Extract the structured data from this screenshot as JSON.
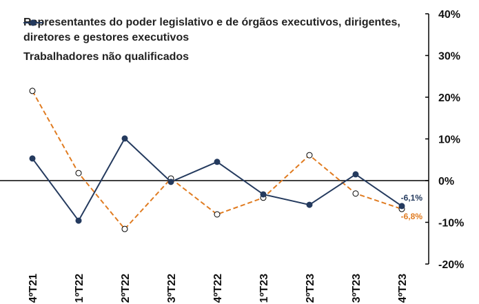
{
  "chart_data": {
    "type": "line",
    "categories": [
      "4ºT21",
      "1ºT22",
      "2ºT22",
      "3ºT22",
      "4ºT22",
      "1ºT23",
      "2ºT23",
      "3ºT23",
      "4ºT23"
    ],
    "series": [
      {
        "name": "Representantes do poder legislativo e de órgãos executivos, dirigentes, diretores e gestores executivos",
        "color": "#e07b20",
        "dashed": true,
        "marker": "open",
        "values": [
          21.5,
          1.8,
          -11.6,
          0.5,
          -8.1,
          -4.1,
          6.1,
          -3.1,
          -6.8
        ],
        "value_labels": [
          null,
          null,
          null,
          null,
          null,
          null,
          null,
          null,
          "-6,8%"
        ]
      },
      {
        "name": "Trabalhadores não qualificados",
        "color": "#243a5e",
        "dashed": false,
        "marker": "filled",
        "values": [
          5.3,
          -9.6,
          10.1,
          -0.3,
          4.5,
          -3.3,
          -5.8,
          1.5,
          -6.1
        ],
        "value_labels": [
          null,
          null,
          null,
          null,
          null,
          null,
          null,
          null,
          "-6,1%"
        ]
      }
    ],
    "ylim": [
      -20,
      40
    ],
    "yticks": [
      {
        "value": -20,
        "label": "-20%"
      },
      {
        "value": -10,
        "label": "-10%"
      },
      {
        "value": 0,
        "label": "0%"
      },
      {
        "value": 10,
        "label": "10%"
      },
      {
        "value": 20,
        "label": "20%"
      },
      {
        "value": 30,
        "label": "30%"
      },
      {
        "value": 40,
        "label": "40%"
      }
    ],
    "y_axis_side": "right"
  }
}
